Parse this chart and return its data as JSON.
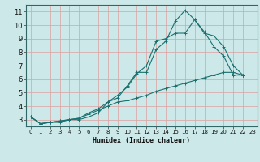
{
  "title": "",
  "xlabel": "Humidex (Indice chaleur)",
  "ylabel": "",
  "bg_color": "#cce8e8",
  "grid_color_h": "#e8c8c8",
  "grid_color_v": "#e8c8c8",
  "line_color": "#1a7070",
  "xlim": [
    -0.5,
    23.5
  ],
  "ylim": [
    2.5,
    11.5
  ],
  "xticks": [
    0,
    1,
    2,
    3,
    4,
    5,
    6,
    7,
    8,
    9,
    10,
    11,
    12,
    13,
    14,
    15,
    16,
    17,
    18,
    19,
    20,
    21,
    22,
    23
  ],
  "yticks": [
    3,
    4,
    5,
    6,
    7,
    8,
    9,
    10,
    11
  ],
  "line1_x": [
    0,
    1,
    2,
    3,
    4,
    5,
    6,
    7,
    8,
    9,
    10,
    11,
    12,
    13,
    14,
    15,
    16,
    17,
    18,
    19,
    20,
    21,
    22
  ],
  "line1_y": [
    3.2,
    2.7,
    2.8,
    2.8,
    3.0,
    3.0,
    3.2,
    3.5,
    4.3,
    4.6,
    5.5,
    6.5,
    6.5,
    8.2,
    8.8,
    10.3,
    11.1,
    10.4,
    9.5,
    8.4,
    7.7,
    6.3,
    6.3
  ],
  "line2_x": [
    0,
    1,
    2,
    3,
    4,
    5,
    6,
    7,
    8,
    9,
    10,
    11,
    12,
    13,
    14,
    15,
    16,
    17,
    18,
    19,
    20,
    21,
    22
  ],
  "line2_y": [
    3.2,
    2.7,
    2.8,
    2.9,
    3.0,
    3.1,
    3.5,
    3.8,
    4.3,
    4.8,
    5.4,
    6.4,
    7.0,
    8.8,
    9.0,
    9.4,
    9.4,
    10.4,
    9.4,
    9.2,
    8.4,
    7.0,
    6.3
  ],
  "line3_x": [
    0,
    1,
    2,
    3,
    4,
    5,
    6,
    7,
    8,
    9,
    10,
    11,
    12,
    13,
    14,
    15,
    16,
    17,
    18,
    19,
    20,
    21,
    22
  ],
  "line3_y": [
    3.2,
    2.7,
    2.8,
    2.9,
    3.0,
    3.1,
    3.4,
    3.7,
    4.0,
    4.3,
    4.4,
    4.6,
    4.8,
    5.1,
    5.3,
    5.5,
    5.7,
    5.9,
    6.1,
    6.3,
    6.5,
    6.5,
    6.3
  ],
  "tick_fontsize": 5,
  "xlabel_fontsize": 6
}
